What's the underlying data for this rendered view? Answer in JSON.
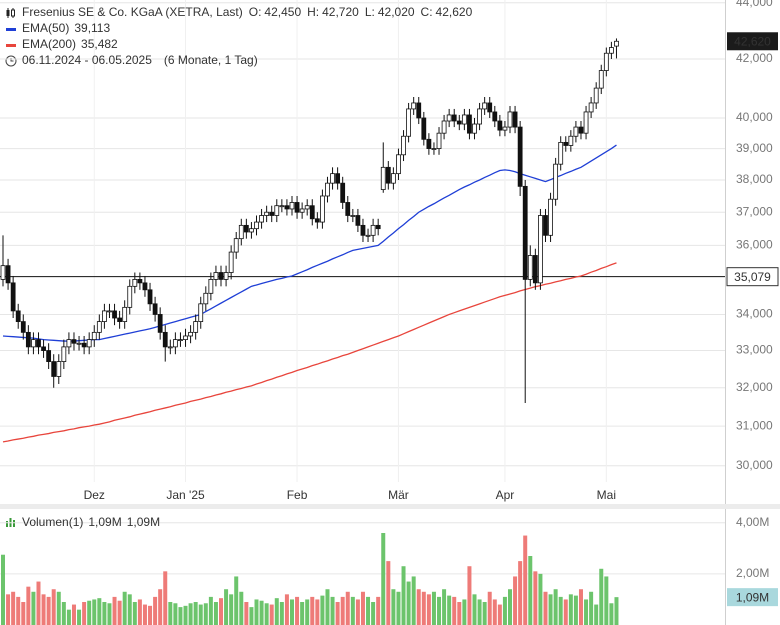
{
  "chart_data": [
    {
      "type": "candlestick",
      "title": "Fresenius SE & Co. KGaA (XETRA, Last)",
      "ohlc_names": [
        "O:",
        "H:",
        "L:",
        "C:"
      ],
      "ohlc_value_labels": [
        "42,450",
        "42,720",
        "42,020",
        "42,620"
      ],
      "period": "06.11.2024 - 06.05.2025",
      "period_note": "(6 Monate, 1 Tag)",
      "last_label": "42,620",
      "categories": [
        null,
        null,
        null,
        null,
        null,
        null,
        null,
        null,
        null,
        null,
        null,
        null,
        null,
        null,
        null,
        null,
        null,
        null,
        "Dez",
        null,
        null,
        null,
        null,
        null,
        null,
        null,
        null,
        null,
        null,
        null,
        null,
        null,
        null,
        null,
        null,
        null,
        "Jan '25",
        null,
        null,
        null,
        null,
        null,
        null,
        null,
        null,
        null,
        null,
        null,
        null,
        null,
        null,
        null,
        null,
        null,
        null,
        null,
        null,
        null,
        "Feb",
        null,
        null,
        null,
        null,
        null,
        null,
        null,
        null,
        null,
        null,
        null,
        null,
        null,
        null,
        null,
        null,
        null,
        null,
        null,
        "Mär",
        null,
        null,
        null,
        null,
        null,
        null,
        null,
        null,
        null,
        null,
        null,
        null,
        null,
        null,
        null,
        null,
        null,
        null,
        null,
        null,
        "Apr",
        null,
        null,
        null,
        null,
        null,
        null,
        null,
        null,
        null,
        null,
        null,
        null,
        null,
        null,
        null,
        null,
        null,
        null,
        null,
        "Mai",
        null,
        null
      ],
      "open": [
        35000,
        35400,
        34900,
        34100,
        33800,
        33500,
        33100,
        33300,
        33100,
        33000,
        32700,
        32300,
        32700,
        33100,
        33300,
        33200,
        33200,
        33100,
        33300,
        33500,
        33800,
        34100,
        34100,
        33900,
        33800,
        34200,
        34800,
        35000,
        34900,
        34700,
        34300,
        34000,
        33500,
        33100,
        33100,
        33300,
        33300,
        33400,
        33500,
        33800,
        34300,
        34600,
        35000,
        35200,
        35000,
        35200,
        35800,
        36200,
        36600,
        36400,
        36500,
        36700,
        36900,
        37000,
        36900,
        37200,
        37200,
        37100,
        37300,
        37000,
        37100,
        37200,
        36800,
        36700,
        37500,
        37900,
        38200,
        37900,
        37300,
        36900,
        36900,
        36600,
        36300,
        36300,
        36600,
        37700,
        38400,
        37900,
        38200,
        38800,
        39400,
        40300,
        40500,
        40000,
        39300,
        39000,
        39000,
        39500,
        39900,
        40100,
        39900,
        39800,
        40100,
        39500,
        39800,
        40300,
        40500,
        40200,
        39900,
        39600,
        39700,
        40200,
        39700,
        37800,
        35000,
        35700,
        34900,
        36900,
        36300,
        37400,
        38500,
        39200,
        39100,
        39400,
        39700,
        39500,
        40200,
        40500,
        41000,
        41600,
        42200,
        42450
      ],
      "high": [
        36300,
        35600,
        35100,
        34300,
        34000,
        33700,
        33500,
        33500,
        33300,
        33200,
        32900,
        32900,
        33300,
        33500,
        33500,
        33400,
        33400,
        33500,
        33700,
        34000,
        34300,
        34300,
        34300,
        34100,
        34400,
        35000,
        35200,
        35200,
        35100,
        34900,
        34500,
        34200,
        33700,
        33300,
        33500,
        33500,
        33600,
        33700,
        34000,
        34500,
        34800,
        35200,
        35400,
        35400,
        35400,
        36000,
        36400,
        36800,
        36800,
        36700,
        36900,
        37100,
        37200,
        37200,
        37400,
        37400,
        37400,
        37500,
        37500,
        37300,
        37400,
        37400,
        37000,
        37700,
        38100,
        38400,
        38400,
        38100,
        37500,
        37100,
        37100,
        36800,
        36500,
        36800,
        36800,
        39200,
        38600,
        38400,
        39000,
        39600,
        40500,
        40700,
        40700,
        40200,
        39500,
        39200,
        39700,
        40100,
        40300,
        40300,
        40100,
        40300,
        40300,
        40000,
        40500,
        40700,
        40700,
        40400,
        40100,
        39900,
        40400,
        40400,
        39900,
        38000,
        36000,
        35900,
        37100,
        37100,
        37600,
        38700,
        39400,
        39400,
        39600,
        39900,
        39900,
        40400,
        40700,
        41200,
        41800,
        42400,
        42600,
        42720
      ],
      "low": [
        34800,
        34700,
        33900,
        33600,
        33300,
        32900,
        32900,
        32900,
        32800,
        32500,
        32000,
        32100,
        32500,
        32900,
        33000,
        33000,
        32900,
        32900,
        33100,
        33300,
        33600,
        33900,
        33700,
        33600,
        33600,
        34000,
        34600,
        34700,
        34500,
        34100,
        33800,
        33300,
        32700,
        32900,
        32900,
        33100,
        33100,
        33200,
        33300,
        33600,
        34100,
        34400,
        34800,
        34800,
        34800,
        35000,
        35600,
        36000,
        36200,
        36200,
        36300,
        36500,
        36700,
        36700,
        36700,
        37000,
        36900,
        36900,
        36800,
        36800,
        36900,
        36600,
        36500,
        36500,
        37300,
        37700,
        37700,
        37100,
        36700,
        36700,
        36400,
        36100,
        36100,
        36100,
        36300,
        37600,
        37700,
        37700,
        38000,
        38600,
        39200,
        40100,
        39800,
        39100,
        38800,
        38800,
        38800,
        39300,
        39700,
        39700,
        39600,
        39600,
        39300,
        39300,
        39600,
        40100,
        40000,
        39700,
        39400,
        39400,
        39500,
        39500,
        37500,
        31600,
        34800,
        34700,
        34700,
        36100,
        36100,
        37200,
        38300,
        38900,
        38900,
        39200,
        39300,
        39300,
        40000,
        40300,
        40800,
        41400,
        42000,
        42020
      ],
      "close": [
        35400,
        34900,
        34100,
        33800,
        33500,
        33100,
        33300,
        33100,
        33000,
        32700,
        32300,
        32700,
        33100,
        33300,
        33200,
        33200,
        33100,
        33300,
        33500,
        33800,
        34100,
        34100,
        33900,
        33800,
        34200,
        34800,
        35000,
        34900,
        34700,
        34300,
        34000,
        33500,
        33100,
        33100,
        33300,
        33300,
        33400,
        33500,
        33800,
        34300,
        34600,
        35000,
        35200,
        35000,
        35200,
        35800,
        36200,
        36600,
        36400,
        36500,
        36700,
        36900,
        37000,
        36900,
        37200,
        37200,
        37100,
        37300,
        37000,
        37100,
        37200,
        36800,
        36700,
        37500,
        37900,
        38200,
        37900,
        37300,
        36900,
        36900,
        36600,
        36300,
        36300,
        36600,
        36500,
        38400,
        37900,
        38200,
        38800,
        39400,
        40300,
        40500,
        40000,
        39300,
        39000,
        39000,
        39500,
        39900,
        40100,
        39900,
        39800,
        40100,
        39500,
        39800,
        40300,
        40500,
        40200,
        39900,
        39600,
        39700,
        40200,
        39700,
        37800,
        35000,
        35700,
        34900,
        36900,
        36300,
        37400,
        38500,
        39200,
        39100,
        39400,
        39700,
        39500,
        40200,
        40500,
        41000,
        41600,
        42200,
        42400,
        42620
      ],
      "series": [
        {
          "name": "EMA(50)",
          "color": "#1f3fd6",
          "last_label": "39,113",
          "values": [
            33400,
            33390,
            33380,
            33370,
            33360,
            33350,
            33340,
            33320,
            33300,
            33290,
            33280,
            33270,
            33260,
            33260,
            33260,
            33270,
            33280,
            33290,
            33300,
            33300,
            33330,
            33360,
            33390,
            33420,
            33450,
            33480,
            33510,
            33540,
            33570,
            33600,
            33640,
            33680,
            33720,
            33760,
            33800,
            33840,
            33880,
            33920,
            33960,
            34000,
            34080,
            34160,
            34240,
            34320,
            34400,
            34480,
            34560,
            34640,
            34720,
            34800,
            34840,
            34880,
            34920,
            34960,
            35000,
            35030,
            35070,
            35100,
            35160,
            35220,
            35280,
            35350,
            35410,
            35470,
            35530,
            35600,
            35660,
            35720,
            35790,
            35850,
            35880,
            35910,
            35940,
            35970,
            36000,
            36120,
            36250,
            36370,
            36500,
            36620,
            36750,
            36870,
            37000,
            37090,
            37180,
            37260,
            37350,
            37440,
            37520,
            37610,
            37700,
            37780,
            37850,
            37930,
            38000,
            38080,
            38150,
            38230,
            38300,
            38320,
            38300,
            38260,
            38200,
            38150,
            38100,
            38050,
            38000,
            37950,
            38010,
            38080,
            38140,
            38210,
            38270,
            38340,
            38400,
            38500,
            38600,
            38700,
            38800,
            38900,
            39000,
            39113
          ]
        },
        {
          "name": "EMA(200)",
          "color": "#e8453c",
          "last_label": "35,482",
          "values": [
            30600,
            30620,
            30650,
            30670,
            30690,
            30720,
            30740,
            30770,
            30790,
            30810,
            30840,
            30860,
            30880,
            30910,
            30930,
            30960,
            30980,
            31000,
            31030,
            31050,
            31080,
            31110,
            31150,
            31180,
            31210,
            31240,
            31280,
            31310,
            31340,
            31370,
            31410,
            31440,
            31470,
            31500,
            31540,
            31570,
            31600,
            31640,
            31670,
            31700,
            31740,
            31770,
            31810,
            31840,
            31880,
            31910,
            31950,
            31980,
            32020,
            32050,
            32100,
            32140,
            32190,
            32230,
            32280,
            32320,
            32370,
            32410,
            32460,
            32500,
            32540,
            32590,
            32630,
            32680,
            32720,
            32770,
            32810,
            32860,
            32900,
            32950,
            33000,
            33050,
            33100,
            33150,
            33200,
            33250,
            33300,
            33350,
            33400,
            33460,
            33520,
            33580,
            33640,
            33700,
            33760,
            33820,
            33880,
            33940,
            34000,
            34050,
            34100,
            34150,
            34200,
            34250,
            34300,
            34350,
            34400,
            34450,
            34500,
            34540,
            34580,
            34620,
            34670,
            34710,
            34750,
            34790,
            34820,
            34860,
            34890,
            34930,
            34960,
            35000,
            35030,
            35070,
            35100,
            35150,
            35210,
            35260,
            35320,
            35370,
            35430,
            35482
          ]
        }
      ],
      "hline": {
        "value": 35079,
        "label": "35,079"
      },
      "ylim": [
        29600,
        44100
      ],
      "yticks": [
        {
          "value": 30000,
          "label": "30,000"
        },
        {
          "value": 31000,
          "label": "31,000"
        },
        {
          "value": 32000,
          "label": "32,000"
        },
        {
          "value": 33000,
          "label": "33,000"
        },
        {
          "value": 34000,
          "label": "34,000"
        },
        {
          "value": 36000,
          "label": "36,000"
        },
        {
          "value": 37000,
          "label": "37,000"
        },
        {
          "value": 38000,
          "label": "38,000"
        },
        {
          "value": 39000,
          "label": "39,000"
        },
        {
          "value": 40000,
          "label": "40,000"
        },
        {
          "value": 42000,
          "label": "42,000"
        },
        {
          "value": 44000,
          "label": "44,000"
        }
      ],
      "log_scale": true,
      "grid": true
    },
    {
      "type": "bar",
      "title": "Volumen(1)",
      "last_label": "1,09M",
      "up_color": "#6cc46c",
      "down_color": "#ee7b78",
      "values": [
        2750000,
        1200000,
        1300000,
        1100000,
        900000,
        1500000,
        1300000,
        1700000,
        1200000,
        1100000,
        1400000,
        1300000,
        900000,
        600000,
        800000,
        600000,
        900000,
        950000,
        1000000,
        1050000,
        900000,
        850000,
        1100000,
        950000,
        1300000,
        1200000,
        900000,
        1000000,
        800000,
        750000,
        1100000,
        1400000,
        2100000,
        900000,
        850000,
        700000,
        750000,
        850000,
        900000,
        800000,
        850000,
        1100000,
        900000,
        1050000,
        1400000,
        1200000,
        1900000,
        1300000,
        900000,
        700000,
        1000000,
        950000,
        850000,
        800000,
        1050000,
        900000,
        1200000,
        1000000,
        1100000,
        900000,
        1000000,
        1100000,
        1000000,
        1150000,
        1400000,
        1100000,
        900000,
        1100000,
        1300000,
        1100000,
        1000000,
        1300000,
        1100000,
        900000,
        1100000,
        3600000,
        2500000,
        1400000,
        1300000,
        2300000,
        1700000,
        1900000,
        1400000,
        1300000,
        1200000,
        1300000,
        1100000,
        1400000,
        1150000,
        1100000,
        900000,
        1000000,
        2300000,
        1200000,
        1000000,
        900000,
        1300000,
        1000000,
        800000,
        1100000,
        1400000,
        1900000,
        2500000,
        3500000,
        2700000,
        2100000,
        2000000,
        1300000,
        1200000,
        1400000,
        1100000,
        1000000,
        1200000,
        1150000,
        1400000,
        1000000,
        1300000,
        800000,
        2200000,
        1900000,
        850000,
        1090000
      ],
      "ylim": [
        0,
        4500000
      ],
      "yticks": [
        {
          "value": 2000000,
          "label": "2,00M"
        },
        {
          "value": 4000000,
          "label": "4,00M"
        }
      ],
      "grid": true
    }
  ]
}
